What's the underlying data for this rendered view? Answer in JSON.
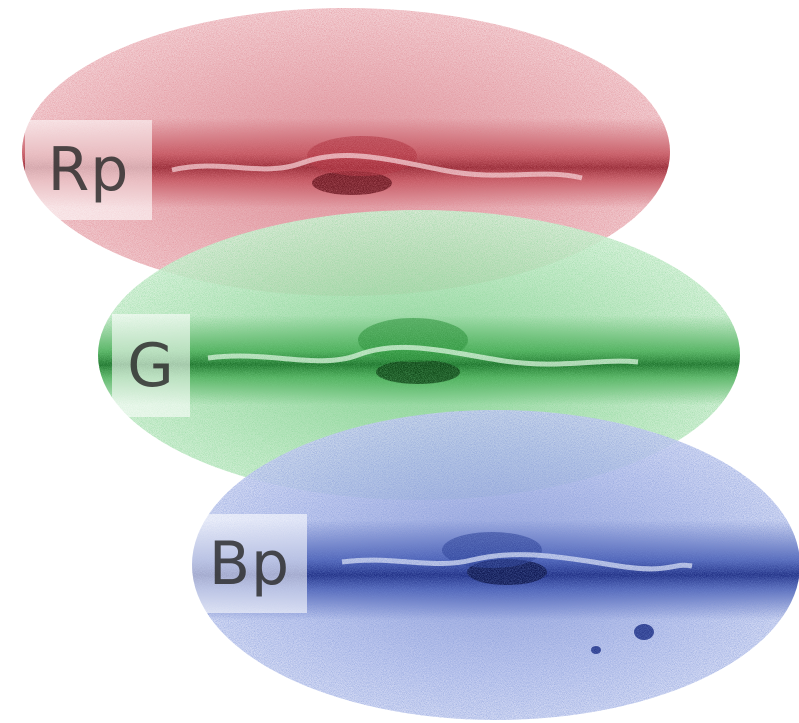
{
  "bands": {
    "rp": {
      "label": "Rp",
      "color": "#b8343e",
      "halo_color": "#e3a4ab"
    },
    "g": {
      "label": "G",
      "color": "#2f9e3e",
      "halo_color": "#a8e0b0"
    },
    "bp": {
      "label": "Bp",
      "color": "#2b43a6",
      "halo_color": "#a9b6e6"
    }
  }
}
